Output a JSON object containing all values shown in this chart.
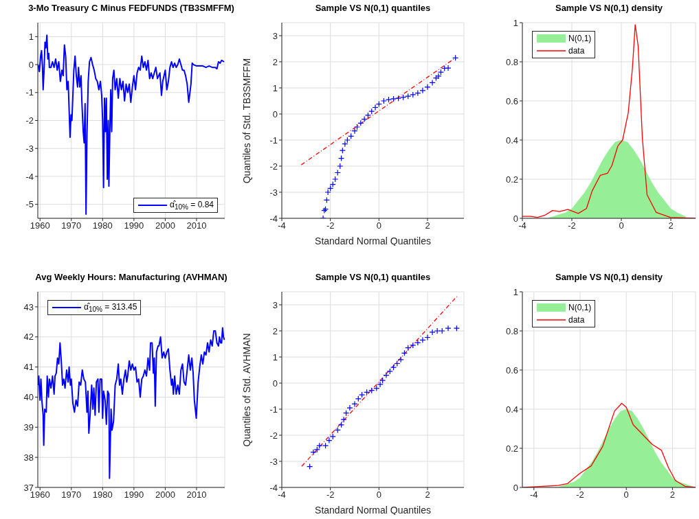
{
  "chart_data": [
    {
      "type": "line",
      "title": "3-Mo Treasury C Minus FEDFUNDS (TB3SMFFM)",
      "xlim": [
        1959.3,
        2019
      ],
      "xticks": [
        1960,
        1970,
        1980,
        1990,
        2000,
        2010
      ],
      "ylim": [
        -5.5,
        1.5
      ],
      "yticks": [
        -5,
        -4,
        -3,
        -2,
        -1,
        0,
        1
      ],
      "grid": true,
      "legend": "bottom right",
      "series": [
        {
          "name": "α̂$_{10%}$ = 0.84",
          "color": "#0000ff",
          "x": [
            1959.4,
            1959.8,
            1960.2,
            1960.5,
            1960.8,
            1961,
            1961.3,
            1961.6,
            1961.9,
            1962.2,
            1962.5,
            1962.8,
            1963,
            1963.5,
            1964,
            1964.5,
            1965,
            1965.5,
            1966,
            1966.5,
            1967,
            1967.4,
            1967.8,
            1968.2,
            1968.6,
            1969,
            1969.6,
            1969.9,
            1970.2,
            1970.5,
            1970.8,
            1971.2,
            1971.6,
            1972,
            1972.3,
            1972.7,
            1973.1,
            1973.4,
            1973.8,
            1974.1,
            1974.4,
            1974.7,
            1975,
            1975.4,
            1975.8,
            1976.3,
            1976.8,
            1977.3,
            1977.8,
            1978.3,
            1978.8,
            1979.3,
            1979.7,
            1980,
            1980.3,
            1980.6,
            1980.9,
            1981.2,
            1981.5,
            1981.8,
            1982,
            1982.3,
            1982.6,
            1982.9,
            1983.2,
            1983.6,
            1984,
            1984.5,
            1985,
            1985.5,
            1986,
            1986.5,
            1987,
            1987.5,
            1988,
            1988.5,
            1989,
            1989.5,
            1990,
            1990.5,
            1991,
            1991.5,
            1992,
            1992.5,
            1993,
            1993.5,
            1994,
            1994.5,
            1995,
            1995.5,
            1996,
            1996.5,
            1997,
            1997.5,
            1998.3,
            1998.8,
            1999.2,
            1999.6,
            2000,
            2000.5,
            2001,
            2001.5,
            2002,
            2002.5,
            2003,
            2003.5,
            2004,
            2004.5,
            2005,
            2005.5,
            2006,
            2006.5,
            2007,
            2007.5,
            2008.2,
            2008.6,
            2009,
            2010,
            2011,
            2012,
            2013,
            2014,
            2015,
            2016,
            2016.5,
            2017,
            2017.5,
            2018,
            2018.8
          ],
          "values": [
            0,
            -0.25,
            0.3,
            0.5,
            -0.1,
            -0.9,
            -0.2,
            0.8,
            0.6,
            1.05,
            0.2,
            0.4,
            -0.1,
            -0.1,
            0.1,
            -0.1,
            0.2,
            -0.2,
            0.1,
            -0.6,
            -0.2,
            -0.4,
            0.7,
            0.3,
            -0.9,
            -0.6,
            -2.6,
            -1.8,
            -2,
            -1.1,
            -0.2,
            0.3,
            -0.4,
            -0.8,
            -0.1,
            -0.8,
            -0.4,
            -1.4,
            -2.4,
            -2.8,
            -1.4,
            -5.35,
            -2.5,
            -0.6,
            0.1,
            0.25,
            0,
            -0.2,
            -0.5,
            -0.6,
            -0.9,
            -0.6,
            -1.1,
            -2,
            -4.4,
            -1.2,
            -2.4,
            -1.2,
            -4.1,
            -2,
            -4.35,
            -2.4,
            -0.9,
            -2.4,
            -0.5,
            -0.2,
            -0.9,
            -0.5,
            -1.2,
            -0.5,
            -0.9,
            -0.6,
            -1.3,
            -0.7,
            -1,
            -0.7,
            -1.35,
            -0.8,
            -0.4,
            -0.9,
            -0.3,
            -0.1,
            -0.2,
            0.3,
            -0.1,
            0.1,
            -0.2,
            0.15,
            -0.5,
            -0.3,
            -0.5,
            -0.3,
            -0.1,
            -0.5,
            -0.3,
            -1.1,
            -0.6,
            -0.4,
            -0.2,
            -0.9,
            -0.6,
            -0.1,
            0.1,
            -0.1,
            0.05,
            -0.1,
            0,
            0.2,
            0,
            -0.2,
            -0.2,
            -0.4,
            -0.7,
            -1.35,
            -0.7,
            0.05,
            0,
            -0.05,
            -0.05,
            -0.05,
            -0.1,
            -0.05,
            -0.1,
            -0.1,
            -0.15,
            0.1,
            0.05,
            0.15,
            0.1
          ]
        }
      ]
    },
    {
      "type": "scatter",
      "title": "Sample VS N(0,1) quantiles",
      "xlabel": "Standard Normal Quantiles",
      "ylabel": "Quantiles of Std. TB3SMFFM",
      "xlim": [
        -4,
        3.5
      ],
      "xticks": [
        -4,
        -2,
        0,
        2
      ],
      "ylim": [
        -4,
        3.5
      ],
      "yticks": [
        -4,
        -3,
        -2,
        -1,
        0,
        1,
        2,
        3
      ],
      "grid": true,
      "series": [
        {
          "type": "scatter",
          "marker": "cross",
          "color": "#0000ff",
          "x": [
            -2.3,
            -2.25,
            -2.2,
            -2.15,
            -2.1,
            -2,
            -1.9,
            -1.8,
            -1.7,
            -1.6,
            -1.55,
            -1.5,
            -1.4,
            -1.3,
            -1.15,
            -1,
            -0.9,
            -0.75,
            -0.6,
            -0.45,
            -0.3,
            -0.15,
            0,
            0.2,
            0.4,
            0.6,
            0.8,
            1,
            1.2,
            1.4,
            1.6,
            1.8,
            2,
            2.2,
            2.35,
            2.45,
            2.55,
            2.7,
            2.85,
            3.15
          ],
          "values": [
            -4,
            -3.7,
            -3.65,
            -3.3,
            -3,
            -2.85,
            -2.7,
            -2.5,
            -2.25,
            -2,
            -1.7,
            -1.4,
            -1.15,
            -1,
            -0.85,
            -0.65,
            -0.5,
            -0.35,
            -0.2,
            -0.05,
            0.1,
            0.25,
            0.38,
            0.5,
            0.55,
            0.58,
            0.6,
            0.64,
            0.68,
            0.74,
            0.8,
            0.9,
            1.03,
            1.2,
            1.38,
            1.45,
            1.6,
            1.75,
            1.76,
            2.15
          ]
        },
        {
          "type": "line",
          "color": "#ff0000",
          "line_style": "dashed",
          "x": [
            -3.2,
            3.15
          ],
          "values": [
            -1.95,
            2.15
          ]
        }
      ]
    },
    {
      "type": "area",
      "title": "Sample VS N(0,1) density",
      "xlim": [
        -4,
        3
      ],
      "xticks": [
        -4,
        -2,
        0,
        2
      ],
      "ylim": [
        0,
        1
      ],
      "yticks": [
        0,
        0.2,
        0.4,
        0.6,
        0.8,
        1
      ],
      "grid": true,
      "legend": "top left",
      "series": [
        {
          "type": "area",
          "name": "N(0,1)",
          "color": "#96ee96",
          "x": [
            -4,
            -3.5,
            -3,
            -2.5,
            -2.25,
            -2,
            -1.75,
            -1.5,
            -1.25,
            -1,
            -0.75,
            -0.5,
            -0.25,
            0,
            0.25,
            0.5,
            0.75,
            1,
            1.25,
            1.5,
            1.75,
            2,
            2.25,
            2.6
          ],
          "values": [
            0,
            0,
            0,
            0.02,
            0.03,
            0.05,
            0.09,
            0.13,
            0.18,
            0.24,
            0.3,
            0.35,
            0.39,
            0.4,
            0.39,
            0.35,
            0.3,
            0.24,
            0.18,
            0.13,
            0.09,
            0.05,
            0.03,
            0.01
          ]
        },
        {
          "type": "line",
          "name": "data",
          "color": "#ff0000",
          "x": [
            -4,
            -3.67,
            -3.39,
            -3.1,
            -2.78,
            -2.5,
            -2.16,
            -1.74,
            -1.41,
            -1.18,
            -0.85,
            -0.56,
            -0.38,
            -0.14,
            0.05,
            0.28,
            0.45,
            0.56,
            0.68,
            0.85,
            1.04,
            1.41,
            1.98,
            2.54,
            3
          ],
          "values": [
            0.01,
            0.01,
            0.005,
            0.015,
            0.04,
            0.035,
            0.045,
            0.025,
            0.05,
            0.14,
            0.22,
            0.23,
            0.27,
            0.37,
            0.4,
            0.54,
            0.77,
            0.99,
            0.88,
            0.41,
            0.12,
            0.03,
            0.005,
            0.002,
            0
          ]
        }
      ]
    },
    {
      "type": "line",
      "title": "Avg Weekly Hours: Manufacturing (AVHMAN)",
      "xlim": [
        1959.3,
        2019
      ],
      "xticks": [
        1960,
        1970,
        1980,
        1990,
        2000,
        2010
      ],
      "ylim": [
        37,
        43.5
      ],
      "yticks": [
        37,
        38,
        39,
        40,
        41,
        42,
        43
      ],
      "grid": true,
      "legend": "top left",
      "series": [
        {
          "name": "α̂$_{10%}$ = 313.45",
          "color": "#0000ff",
          "x": [
            1959.3,
            1959.6,
            1960,
            1960.3,
            1960.6,
            1961,
            1961.2,
            1961.5,
            1962,
            1962.3,
            1962.7,
            1963,
            1963.5,
            1964,
            1964.5,
            1964.8,
            1965.2,
            1965.6,
            1966,
            1966.4,
            1966.8,
            1967.2,
            1967.6,
            1968,
            1968.5,
            1969,
            1969.3,
            1969.7,
            1970,
            1970.5,
            1971,
            1971.5,
            1972,
            1972.5,
            1973,
            1973.5,
            1974,
            1974.5,
            1975,
            1975.3,
            1975.6,
            1976,
            1976.5,
            1976.9,
            1977.2,
            1977.6,
            1978,
            1978.5,
            1978.8,
            1979.2,
            1979.7,
            1980,
            1980.3,
            1980.8,
            1981.2,
            1981.6,
            1982,
            1982.2,
            1982.7,
            1983,
            1983.5,
            1984,
            1984.5,
            1985,
            1985.4,
            1985.8,
            1986.3,
            1986.8,
            1987.3,
            1987.7,
            1988,
            1988.5,
            1989,
            1989.5,
            1990,
            1990.5,
            1991,
            1991.5,
            1992,
            1992.5,
            1993,
            1993.5,
            1994,
            1994.5,
            1995,
            1995.3,
            1995.8,
            1996.2,
            1996.5,
            1996.8,
            1997.2,
            1997.7,
            1998,
            1998.5,
            1999,
            1999.5,
            2000,
            2000.5,
            2001,
            2001.5,
            2002,
            2002.3,
            2002.6,
            2003,
            2003.5,
            2004,
            2004.5,
            2005,
            2005.5,
            2006,
            2006.5,
            2007,
            2007.5,
            2008,
            2008.5,
            2008.9,
            2009.3,
            2009.9,
            2010.5,
            2011,
            2011.5,
            2012,
            2012.5,
            2013,
            2013.5,
            2014,
            2014.5,
            2015,
            2015.5,
            2016,
            2016.5,
            2017,
            2017.3,
            2017.7,
            2018,
            2018.3,
            2018.6,
            2018.9
          ],
          "values": [
            40.4,
            40.7,
            39.9,
            40.6,
            39.9,
            39.4,
            38.4,
            39.6,
            39.5,
            40.7,
            40,
            40.6,
            40.3,
            40.7,
            40.1,
            40.7,
            40.8,
            41.3,
            41.1,
            41.8,
            41.2,
            40.4,
            40.6,
            40.3,
            40.9,
            40.5,
            41,
            40.4,
            40.6,
            39.8,
            39.5,
            39.9,
            39.7,
            40.5,
            40.4,
            40.9,
            40.6,
            40.5,
            39.5,
            40.2,
            38.8,
            39.4,
            40.4,
            39.6,
            40.3,
            39.4,
            40.5,
            40.6,
            39.5,
            40.6,
            40.6,
            39.3,
            40.2,
            39.9,
            39.1,
            40.2,
            40.1,
            37.3,
            39.6,
            38.9,
            39.2,
            40.4,
            40.6,
            41.1,
            40.4,
            40.6,
            40.1,
            40.6,
            40.9,
            40.5,
            40.7,
            41.2,
            40.9,
            41.1,
            40.9,
            41,
            40.5,
            40.6,
            40,
            40.6,
            40.7,
            40.9,
            40.7,
            41.3,
            40.9,
            41.8,
            41.8,
            40.8,
            41.3,
            39.7,
            41.5,
            41.7,
            41.7,
            42,
            41.3,
            41.5,
            41.3,
            41.5,
            41.6,
            40.9,
            40.4,
            40.6,
            40.1,
            40.7,
            40.1,
            40.4,
            40.1,
            40.9,
            41.1,
            40.5,
            40.4,
            40.9,
            41.4,
            40.9,
            41.3,
            40.8,
            39.9,
            39.3,
            40.5,
            41,
            41.4,
            41.1,
            41.5,
            41.4,
            41.8,
            41.5,
            41.9,
            41.7,
            42.2,
            42.2,
            41.8,
            41.7,
            42,
            41.8,
            41.8,
            42.3,
            42,
            41.9
          ]
        }
      ]
    },
    {
      "type": "scatter",
      "title": "Sample VS N(0,1) quantiles",
      "xlabel": "Standard Normal Quantiles",
      "ylabel": "Quantiles of Std. AVHMAN",
      "xlim": [
        -4,
        3.5
      ],
      "xticks": [
        -4,
        -2,
        0,
        2
      ],
      "ylim": [
        -4,
        3.5
      ],
      "yticks": [
        -4,
        -3,
        -2,
        -1,
        0,
        1,
        2,
        3
      ],
      "grid": true,
      "series": [
        {
          "type": "scatter",
          "marker": "cross",
          "color": "#0000ff",
          "x": [
            -2.85,
            -2.7,
            -2.55,
            -2.45,
            -2.2,
            -2.05,
            -1.9,
            -1.7,
            -1.55,
            -1.45,
            -1.35,
            -1.2,
            -1,
            -0.85,
            -0.7,
            -0.5,
            -0.3,
            -0.1,
            0.05,
            0.15,
            0.3,
            0.45,
            0.6,
            0.75,
            0.9,
            1.05,
            1.2,
            1.4,
            1.6,
            1.8,
            2,
            2.2,
            2.4,
            2.6,
            2.85,
            3.2
          ],
          "values": [
            -3.2,
            -2.65,
            -2.55,
            -2.4,
            -2.4,
            -2.2,
            -2.05,
            -1.8,
            -1.6,
            -1.4,
            -1.15,
            -0.95,
            -0.8,
            -0.6,
            -0.45,
            -0.35,
            -0.28,
            -0.2,
            -0.05,
            0.1,
            0.3,
            0.45,
            0.6,
            0.75,
            0.9,
            1.15,
            1.35,
            1.45,
            1.55,
            1.65,
            1.75,
            1.95,
            2,
            2,
            2.1,
            2.1
          ]
        },
        {
          "type": "line",
          "color": "#ff0000",
          "line_style": "dashed",
          "x": [
            -3.18,
            3.21
          ],
          "values": [
            -3.19,
            3.32
          ]
        }
      ]
    },
    {
      "type": "area",
      "title": "Sample VS N(0,1) density",
      "xlim": [
        -4.5,
        3
      ],
      "xticks": [
        -4,
        -2,
        0,
        2
      ],
      "ylim": [
        0,
        1
      ],
      "yticks": [
        0,
        0.2,
        0.4,
        0.6,
        0.8,
        1
      ],
      "grid": true,
      "legend": "top left",
      "series": [
        {
          "type": "area",
          "name": "N(0,1)",
          "color": "#96ee96",
          "x": [
            -4.5,
            -4,
            -3.5,
            -3,
            -2.5,
            -2.25,
            -2,
            -1.75,
            -1.5,
            -1.25,
            -1,
            -0.75,
            -0.5,
            -0.25,
            0,
            0.25,
            0.5,
            0.75,
            1,
            1.25,
            1.5,
            1.75,
            2,
            2.25,
            2.5,
            3
          ],
          "values": [
            0,
            0,
            0,
            0,
            0.02,
            0.03,
            0.05,
            0.09,
            0.13,
            0.18,
            0.24,
            0.3,
            0.35,
            0.39,
            0.4,
            0.39,
            0.35,
            0.3,
            0.24,
            0.18,
            0.13,
            0.09,
            0.05,
            0.03,
            0.02,
            0
          ]
        },
        {
          "type": "line",
          "name": "data",
          "color": "#ff0000",
          "x": [
            -4.5,
            -2.94,
            -2.54,
            -2.03,
            -1.52,
            -1.02,
            -0.51,
            -0.2,
            0,
            0.3,
            0.71,
            1.12,
            1.52,
            1.83,
            2.13,
            2.54,
            3
          ],
          "values": [
            0,
            0.01,
            0.02,
            0.07,
            0.11,
            0.21,
            0.39,
            0.43,
            0.41,
            0.32,
            0.27,
            0.22,
            0.19,
            0.1,
            0.035,
            0.006,
            0
          ]
        }
      ]
    }
  ]
}
